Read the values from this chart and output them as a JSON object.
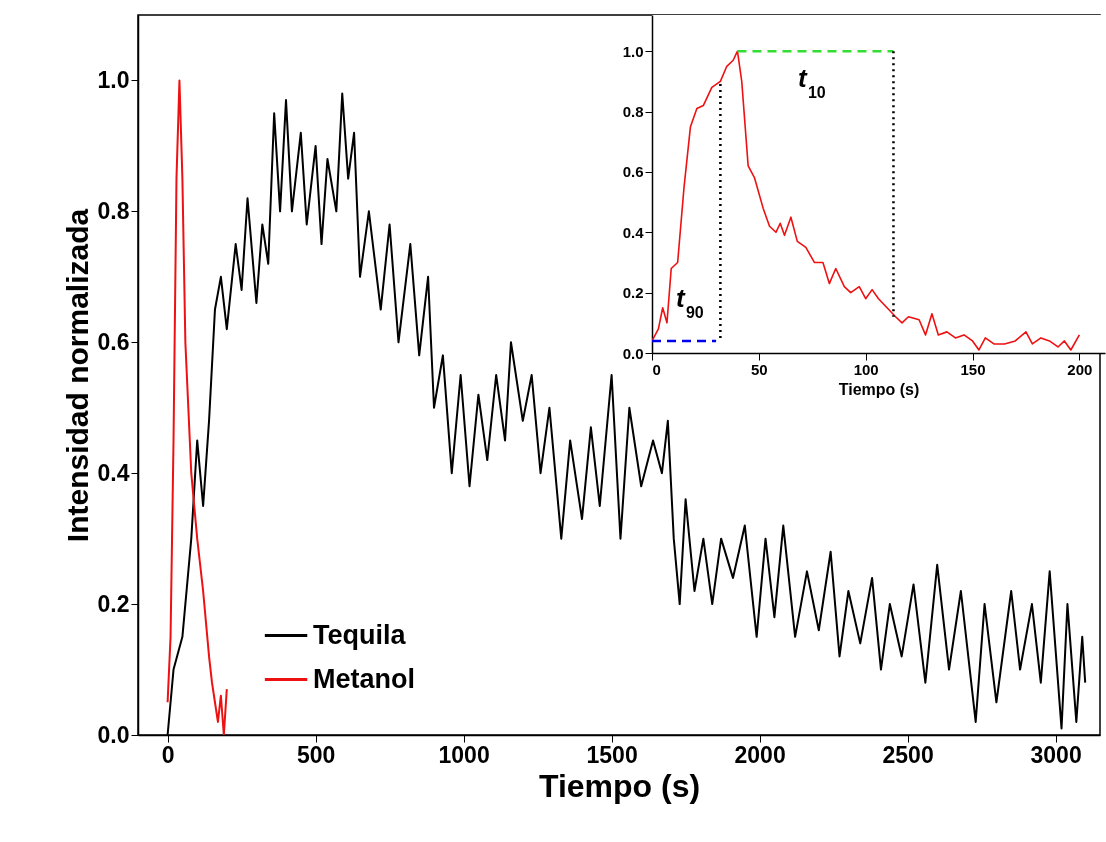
{
  "chart_data": [
    {
      "type": "line",
      "xlabel": "Tiempo (s)",
      "ylabel": "Intensidad normalizada",
      "xlim": [
        -100,
        3150
      ],
      "ylim": [
        0,
        1.1
      ],
      "xticks": [
        0,
        500,
        1000,
        1500,
        2000,
        2500,
        3000
      ],
      "yticks": [
        {
          "value": 0,
          "label": "0.0"
        },
        {
          "value": 0.2,
          "label": "0.2"
        },
        {
          "value": 0.4,
          "label": "0.4"
        },
        {
          "value": 0.6,
          "label": "0.6"
        },
        {
          "value": 0.8,
          "label": "0.8"
        },
        {
          "value": 1,
          "label": "1.0"
        }
      ],
      "legend": "bottom left",
      "series": [
        {
          "name": "Tequila",
          "color": "#000000",
          "x": [
            0,
            20,
            50,
            80,
            100,
            120,
            140,
            160,
            180,
            200,
            230,
            250,
            270,
            300,
            320,
            340,
            360,
            380,
            400,
            420,
            450,
            470,
            500,
            520,
            540,
            570,
            590,
            610,
            630,
            650,
            680,
            720,
            750,
            780,
            820,
            850,
            880,
            900,
            930,
            960,
            990,
            1020,
            1050,
            1080,
            1110,
            1140,
            1160,
            1200,
            1230,
            1260,
            1290,
            1330,
            1360,
            1400,
            1430,
            1460,
            1500,
            1530,
            1560,
            1600,
            1640,
            1670,
            1690,
            1710,
            1730,
            1750,
            1780,
            1810,
            1840,
            1870,
            1910,
            1950,
            1990,
            2020,
            2050,
            2080,
            2120,
            2160,
            2200,
            2240,
            2270,
            2300,
            2340,
            2380,
            2410,
            2440,
            2480,
            2520,
            2560,
            2600,
            2640,
            2680,
            2730,
            2760,
            2800,
            2850,
            2880,
            2920,
            2950,
            2980,
            3020,
            3040,
            3070,
            3090,
            3100
          ],
          "values": [
            0,
            0.1,
            0.15,
            0.3,
            0.45,
            0.35,
            0.48,
            0.65,
            0.7,
            0.62,
            0.75,
            0.68,
            0.82,
            0.66,
            0.78,
            0.72,
            0.95,
            0.8,
            0.97,
            0.8,
            0.92,
            0.78,
            0.9,
            0.75,
            0.88,
            0.8,
            0.98,
            0.85,
            0.92,
            0.7,
            0.8,
            0.65,
            0.78,
            0.6,
            0.75,
            0.58,
            0.7,
            0.5,
            0.58,
            0.4,
            0.55,
            0.38,
            0.52,
            0.42,
            0.55,
            0.45,
            0.6,
            0.48,
            0.55,
            0.4,
            0.5,
            0.3,
            0.45,
            0.33,
            0.47,
            0.35,
            0.55,
            0.3,
            0.5,
            0.38,
            0.45,
            0.4,
            0.48,
            0.3,
            0.2,
            0.36,
            0.22,
            0.3,
            0.2,
            0.3,
            0.24,
            0.32,
            0.15,
            0.3,
            0.18,
            0.32,
            0.15,
            0.25,
            0.16,
            0.28,
            0.12,
            0.22,
            0.14,
            0.24,
            0.1,
            0.2,
            0.12,
            0.23,
            0.08,
            0.26,
            0.1,
            0.22,
            0.02,
            0.2,
            0.05,
            0.22,
            0.1,
            0.2,
            0.08,
            0.25,
            0.01,
            0.2,
            0.02,
            0.15,
            0.08
          ]
        },
        {
          "name": "Metanol",
          "color": "#ee1111",
          "x": [
            0,
            10,
            20,
            30,
            40,
            50,
            60,
            70,
            80,
            100,
            120,
            140,
            150,
            160,
            170,
            180,
            190,
            200
          ],
          "values": [
            0.05,
            0.15,
            0.45,
            0.85,
            1.0,
            0.85,
            0.6,
            0.5,
            0.4,
            0.3,
            0.22,
            0.12,
            0.08,
            0.05,
            0.02,
            0.06,
            0,
            0.07
          ]
        }
      ]
    },
    {
      "type": "line",
      "xlabel": "Tiempo (s)",
      "xlim": [
        0,
        212
      ],
      "ylim": [
        0,
        1.12
      ],
      "xticks": [
        0,
        50,
        100,
        150,
        200
      ],
      "yticks": [
        {
          "value": 0,
          "label": "0.0"
        },
        {
          "value": 0.2,
          "label": "0.2"
        },
        {
          "value": 0.4,
          "label": "0.4"
        },
        {
          "value": 0.6,
          "label": "0.6"
        },
        {
          "value": 0.8,
          "label": "0.8"
        },
        {
          "value": 1,
          "label": "1.0"
        }
      ],
      "annotations": [
        "t$_{90}$",
        "t$_{10}$"
      ],
      "series": [
        {
          "color": "#ee1111",
          "x": [
            0,
            3,
            5,
            7,
            9,
            12,
            15,
            18,
            21,
            24,
            28,
            32,
            35,
            38,
            40,
            42,
            45,
            48,
            52,
            55,
            58,
            60,
            62,
            65,
            68,
            72,
            76,
            80,
            83,
            86,
            90,
            93,
            97,
            100,
            103,
            106,
            110,
            114,
            117,
            120,
            125,
            128,
            131,
            134,
            138,
            142,
            146,
            150,
            153,
            156,
            160,
            165,
            170,
            175,
            178,
            182,
            186,
            190,
            193,
            196,
            200
          ],
          "values": [
            0.04,
            0.08,
            0.15,
            0.1,
            0.28,
            0.3,
            0.55,
            0.75,
            0.81,
            0.82,
            0.88,
            0.9,
            0.95,
            0.97,
            1.0,
            0.9,
            0.62,
            0.58,
            0.48,
            0.42,
            0.4,
            0.43,
            0.39,
            0.45,
            0.37,
            0.35,
            0.3,
            0.3,
            0.23,
            0.28,
            0.22,
            0.2,
            0.22,
            0.18,
            0.21,
            0.18,
            0.15,
            0.12,
            0.1,
            0.12,
            0.11,
            0.06,
            0.13,
            0.06,
            0.07,
            0.05,
            0.06,
            0.04,
            0.01,
            0.05,
            0.03,
            0.03,
            0.04,
            0.07,
            0.03,
            0.05,
            0.04,
            0.02,
            0.04,
            0.01,
            0.06
          ]
        },
        {
          "color": "#0000ee",
          "line_style": "dashed",
          "x": [
            0,
            30
          ],
          "values": [
            0.04,
            0.04
          ]
        },
        {
          "color": "#000000",
          "line_style": "dotted",
          "x": [
            32,
            32
          ],
          "values": [
            0.05,
            0.9
          ]
        },
        {
          "color": "#33dd33",
          "line_style": "dashed",
          "x": [
            40,
            113
          ],
          "values": [
            1.0,
            1.0
          ]
        },
        {
          "color": "#000000",
          "line_style": "dotted",
          "x": [
            113,
            113
          ],
          "values": [
            1.0,
            0.12
          ]
        }
      ]
    }
  ]
}
